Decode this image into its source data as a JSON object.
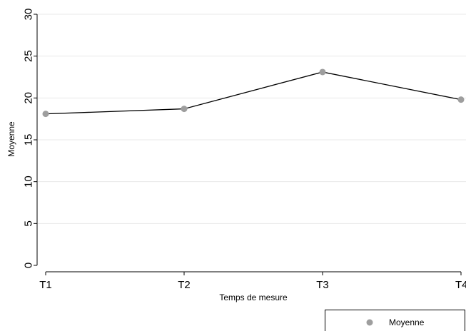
{
  "chart_data": {
    "type": "line",
    "title": "",
    "xlabel": "Temps de mesure",
    "ylabel": "Moyenne",
    "categories": [
      "T1",
      "T2",
      "T3",
      "T4"
    ],
    "series": [
      {
        "name": "Moyenne",
        "values": [
          18.1,
          18.7,
          23.1,
          19.8
        ]
      }
    ],
    "ylim": [
      0,
      30
    ],
    "yticks": [
      0,
      5,
      10,
      15,
      20,
      25,
      30
    ],
    "grid": true,
    "legend": "bottom-right",
    "colors": {
      "line": "#000000",
      "marker": "#9e9e9e",
      "grid": "#e8e8e8"
    }
  }
}
